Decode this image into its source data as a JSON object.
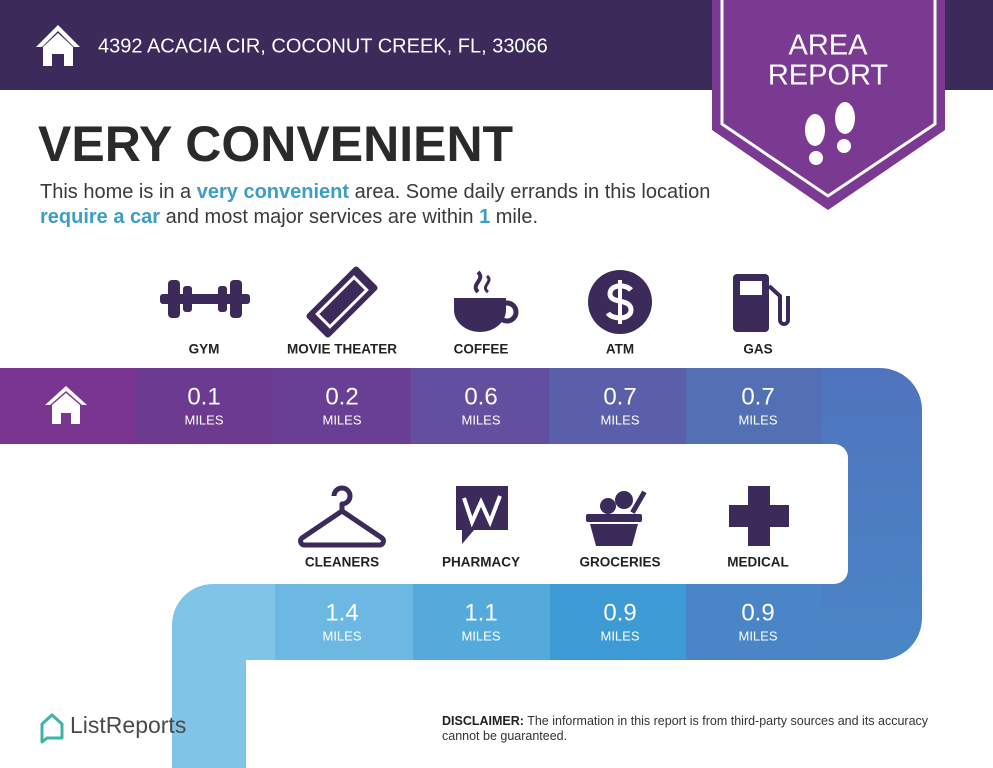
{
  "header": {
    "address": "4392 ACACIA CIR, COCONUT CREEK, FL, 33066"
  },
  "badge": {
    "line1": "AREA",
    "line2": "REPORT"
  },
  "headline": "VERY CONVENIENT",
  "description": [
    {
      "text": "This home is in a ",
      "highlight": false
    },
    {
      "text": "very convenient",
      "highlight": true
    },
    {
      "text": " area. Some daily errands in this location ",
      "highlight": false
    },
    {
      "text": "require a car",
      "highlight": true
    },
    {
      "text": " and most major services are within ",
      "highlight": false
    },
    {
      "text": "1",
      "highlight": true
    },
    {
      "text": " mile.",
      "highlight": false
    }
  ],
  "unit": "MILES",
  "services": [
    {
      "name": "GYM",
      "distance": 0.1
    },
    {
      "name": "MOVIE THEATER",
      "distance": 0.2
    },
    {
      "name": "COFFEE",
      "distance": 0.6
    },
    {
      "name": "ATM",
      "distance": 0.7
    },
    {
      "name": "GAS",
      "distance": 0.7
    },
    {
      "name": "CLEANERS",
      "distance": 1.4
    },
    {
      "name": "PHARMACY",
      "distance": 1.1
    },
    {
      "name": "GROCERIES",
      "distance": 0.9
    },
    {
      "name": "MEDICAL",
      "distance": 0.9
    }
  ],
  "logo": "ListReports",
  "disclaimer": {
    "label": "DISCLAIMER:",
    "text": " The information in this report is from third-party sources and its accuracy cannot be guaranteed."
  }
}
